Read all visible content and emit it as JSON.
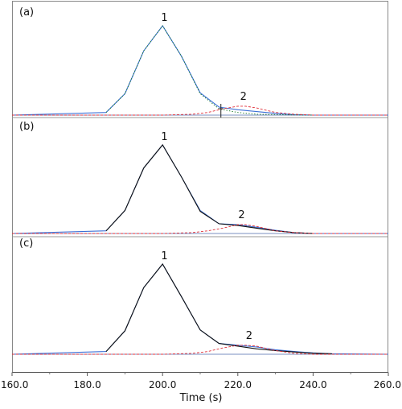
{
  "chart_data": {
    "type": "line",
    "xlabel": "Time (s)",
    "xlim": [
      160,
      260
    ],
    "x_ticks": [
      "160.0",
      "180.0",
      "200.0",
      "220.0",
      "240.0",
      "260.0"
    ],
    "grid": false,
    "panels": [
      {
        "label": "(a)",
        "peak_labels": [
          {
            "text": "1",
            "x": 200.5
          },
          {
            "text": "2",
            "x": 221.5
          }
        ],
        "series": [
          {
            "role": "measured signal",
            "color": "#3b6fd6",
            "style": "solid",
            "x": [
              160,
              185,
              190,
              195,
              200,
              205,
              210,
              215,
              220,
              225,
              230,
              235,
              240,
              260
            ],
            "y": [
              0,
              0.03,
              0.24,
              0.72,
              1.0,
              0.66,
              0.25,
              0.09,
              0.06,
              0.04,
              0.02,
              0.005,
              0,
              0
            ]
          },
          {
            "role": "fitted peak 1",
            "color": "#1a7a2a",
            "style": "dotted",
            "x": [
              185,
              190,
              195,
              200,
              205,
              210,
              215,
              220,
              225,
              230,
              235,
              240
            ],
            "y": [
              0.03,
              0.24,
              0.72,
              1.0,
              0.66,
              0.24,
              0.07,
              0.03,
              0.01,
              0.005,
              0.002,
              0
            ]
          },
          {
            "role": "fitted peak 2",
            "color": "#e0303a",
            "style": "dashed",
            "x": [
              160,
              185,
              200,
              208,
              212,
              216,
              220,
              222,
              225,
              230,
              235,
              240,
              260
            ],
            "y": [
              0,
              0,
              0,
              0.01,
              0.03,
              0.07,
              0.1,
              0.1,
              0.08,
              0.03,
              0.01,
              0,
              0
            ]
          }
        ],
        "marker_x": 215.5
      },
      {
        "label": "(b)",
        "peak_labels": [
          {
            "text": "1",
            "x": 200.5
          },
          {
            "text": "2",
            "x": 221.0
          }
        ],
        "series": [
          {
            "role": "measured signal",
            "color": "#3b6fd6",
            "style": "solid",
            "x": [
              160,
              185,
              190,
              195,
              200,
              205,
              210,
              215,
              220,
              225,
              230,
              235,
              240,
              260
            ],
            "y": [
              0,
              0.03,
              0.26,
              0.74,
              1.0,
              0.64,
              0.26,
              0.11,
              0.1,
              0.07,
              0.035,
              0.01,
              0,
              0
            ]
          },
          {
            "role": "fitted peak 1",
            "color": "#111111",
            "style": "solid",
            "x": [
              185,
              190,
              195,
              200,
              205,
              210,
              215,
              220,
              225,
              230,
              235,
              240
            ],
            "y": [
              0.03,
              0.26,
              0.74,
              1.0,
              0.64,
              0.25,
              0.11,
              0.09,
              0.06,
              0.03,
              0.01,
              0
            ]
          },
          {
            "role": "fitted peak 2",
            "color": "#e0303a",
            "style": "dashed",
            "x": [
              160,
              200,
              208,
              212,
              216,
              220,
              222,
              225,
              230,
              235,
              240,
              260
            ],
            "y": [
              0,
              0,
              0.01,
              0.03,
              0.06,
              0.1,
              0.1,
              0.08,
              0.03,
              0.01,
              0,
              0
            ]
          }
        ]
      },
      {
        "label": "(c)",
        "peak_labels": [
          {
            "text": "1",
            "x": 200.5
          },
          {
            "text": "2",
            "x": 223.0
          }
        ],
        "series": [
          {
            "role": "measured signal",
            "color": "#3b6fd6",
            "style": "solid",
            "x": [
              160,
              185,
              190,
              195,
              200,
              205,
              210,
              215,
              220,
              225,
              230,
              235,
              240,
              245,
              260
            ],
            "y": [
              0,
              0.03,
              0.26,
              0.74,
              1.0,
              0.64,
              0.27,
              0.12,
              0.1,
              0.08,
              0.05,
              0.03,
              0.015,
              0.005,
              0
            ]
          },
          {
            "role": "fitted peak 1",
            "color": "#111111",
            "style": "solid",
            "x": [
              185,
              190,
              195,
              200,
              205,
              210,
              215,
              220,
              225,
              230,
              235,
              240,
              245
            ],
            "y": [
              0.03,
              0.26,
              0.74,
              1.0,
              0.64,
              0.27,
              0.12,
              0.09,
              0.06,
              0.04,
              0.025,
              0.012,
              0.005
            ]
          },
          {
            "role": "fitted peak 2",
            "color": "#e0303a",
            "style": "dashed",
            "x": [
              160,
              200,
              208,
              212,
              216,
              220,
              222,
              225,
              230,
              235,
              240,
              260
            ],
            "y": [
              0,
              0,
              0.01,
              0.03,
              0.07,
              0.1,
              0.1,
              0.09,
              0.04,
              0.01,
              0,
              0
            ]
          }
        ]
      }
    ]
  }
}
